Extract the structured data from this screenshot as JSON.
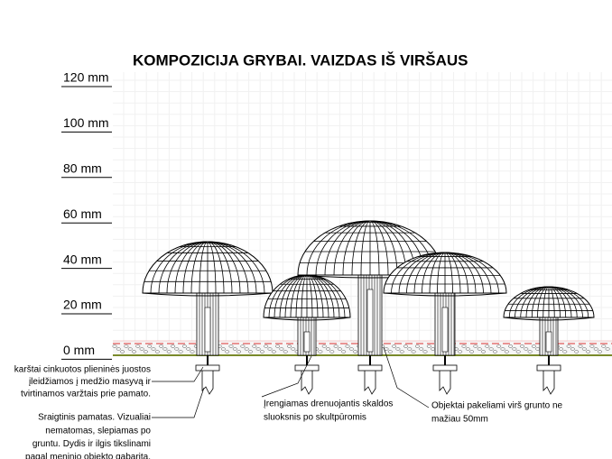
{
  "title": "KOMPOZICIJA GRYBAI. VAIZDAS IŠ VIRŠAUS",
  "scale": [
    "120 mm",
    "100 mm",
    "80 mm",
    "60 mm",
    "40 mm",
    "20 mm",
    "0 mm"
  ],
  "notes": [
    {
      "lines": [
        "karštai cinkuotos plieninės juostos",
        "įleidžiamos į medžio masyvą ir",
        "tvirtinamos varžtais prie pamato."
      ]
    },
    {
      "lines": [
        "Sraigtinis pamatas. Vizualiai",
        "nematomas, slepiamas po",
        "gruntu. Dydis ir ilgis tikslinami",
        "pagal meninio objekto gabaritą."
      ]
    },
    {
      "lines": [
        "Įrengiamas drenuojantis skaldos",
        "sluoksnis po skultpūromis"
      ]
    },
    {
      "lines": [
        "Objektai pakeliami virš grunto ne",
        "mažiau 50mm"
      ]
    }
  ]
}
